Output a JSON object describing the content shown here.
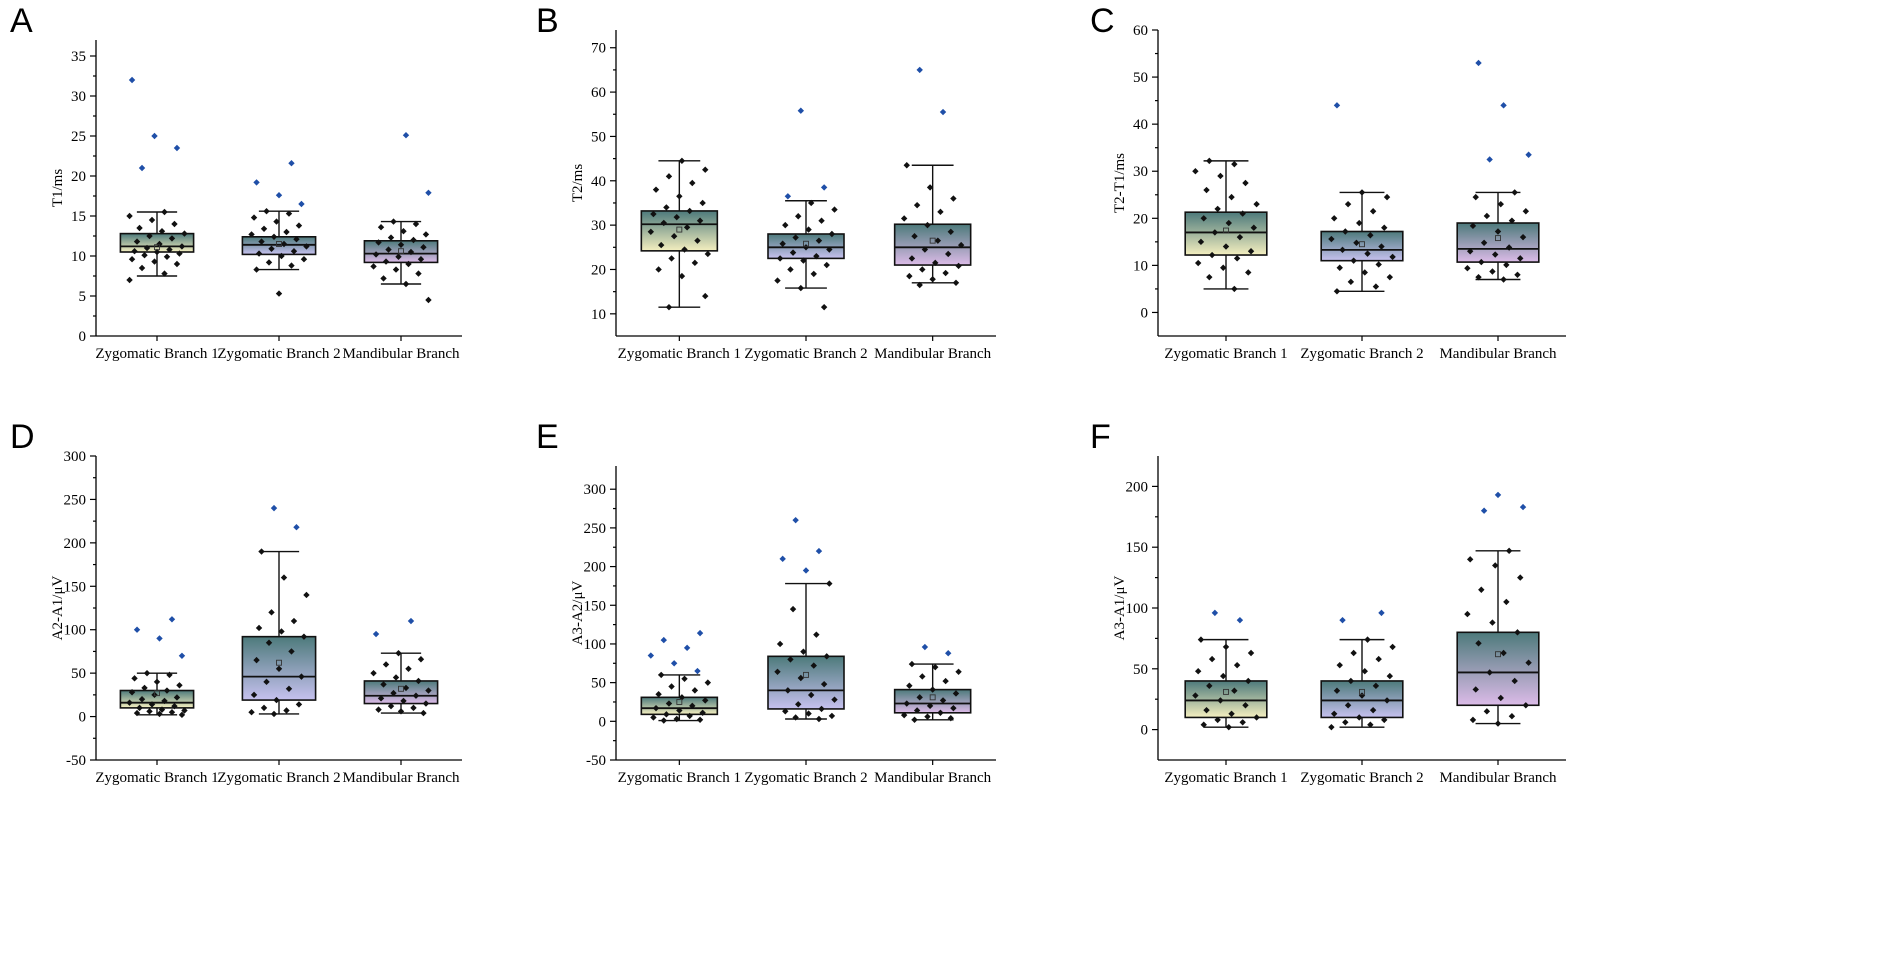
{
  "chart_data": [
    {
      "panel": "A",
      "type": "box",
      "ylabel": "T1/ms",
      "ylim": [
        0,
        37
      ],
      "yticks": [
        0,
        5,
        10,
        15,
        20,
        25,
        30,
        35
      ],
      "categories": [
        "Zygomatic Branch 1",
        "Zygomatic Branch 2",
        "Mandibular Branch"
      ],
      "boxes": [
        {
          "q1": 10.5,
          "median": 11.2,
          "q3": 12.8,
          "whisker_low": 7.5,
          "whisker_high": 15.5,
          "mean": 11.1,
          "points": [
            7.0,
            7.8,
            8.5,
            9.0,
            9.3,
            9.6,
            9.9,
            10.1,
            10.3,
            10.5,
            10.6,
            10.8,
            11.0,
            11.2,
            11.5,
            11.8,
            12.2,
            12.5,
            12.8,
            13.1,
            13.5,
            14.0,
            14.5,
            15.0,
            15.5,
            21.0,
            23.5,
            25.0,
            32.0
          ],
          "outliers": [
            21.0,
            23.5,
            25.0,
            32.0
          ]
        },
        {
          "q1": 10.2,
          "median": 11.4,
          "q3": 12.4,
          "whisker_low": 8.3,
          "whisker_high": 15.6,
          "mean": 11.5,
          "points": [
            5.3,
            8.3,
            8.8,
            9.2,
            9.6,
            10.0,
            10.3,
            10.6,
            10.9,
            11.2,
            11.5,
            11.8,
            12.1,
            12.4,
            12.7,
            13.0,
            13.4,
            13.8,
            14.3,
            14.8,
            15.3,
            15.6,
            16.5,
            17.6,
            19.2,
            21.6
          ],
          "outliers": [
            16.5,
            17.6,
            19.2,
            21.6
          ]
        },
        {
          "q1": 9.2,
          "median": 10.3,
          "q3": 11.9,
          "whisker_low": 6.5,
          "whisker_high": 14.3,
          "mean": 10.6,
          "points": [
            4.5,
            6.5,
            7.2,
            7.8,
            8.3,
            8.7,
            9.0,
            9.3,
            9.6,
            9.9,
            10.2,
            10.5,
            10.8,
            11.1,
            11.4,
            11.7,
            12.0,
            12.3,
            12.7,
            13.1,
            13.6,
            14.0,
            14.3,
            17.9,
            25.1
          ],
          "outliers": [
            17.9,
            25.1
          ]
        }
      ]
    },
    {
      "panel": "B",
      "type": "box",
      "ylabel": "T2/ms",
      "ylim": [
        5,
        74
      ],
      "yticks": [
        10,
        20,
        30,
        40,
        50,
        60,
        70
      ],
      "categories": [
        "Zygomatic Branch 1",
        "Zygomatic Branch 2",
        "Mandibular Branch"
      ],
      "boxes": [
        {
          "q1": 24.2,
          "median": 30.2,
          "q3": 33.2,
          "whisker_low": 11.5,
          "whisker_high": 44.5,
          "mean": 29.0,
          "points": [
            11.5,
            14.0,
            18.5,
            20.0,
            21.5,
            22.5,
            23.5,
            24.5,
            25.5,
            26.5,
            27.5,
            28.5,
            29.5,
            30.5,
            31.0,
            31.8,
            32.5,
            33.2,
            34.0,
            35.0,
            36.5,
            38.0,
            39.5,
            41.0,
            42.5,
            44.5
          ],
          "outliers": []
        },
        {
          "q1": 22.5,
          "median": 25.0,
          "q3": 28.0,
          "whisker_low": 15.8,
          "whisker_high": 35.5,
          "mean": 25.8,
          "points": [
            11.5,
            15.8,
            17.5,
            19.0,
            20.0,
            21.0,
            22.0,
            22.5,
            23.0,
            23.8,
            24.5,
            25.0,
            25.8,
            26.5,
            27.2,
            28.0,
            29.0,
            30.0,
            31.0,
            32.0,
            33.5,
            35.0,
            36.5,
            38.5,
            55.8
          ],
          "outliers": [
            36.5,
            38.5,
            55.8
          ]
        },
        {
          "q1": 21.0,
          "median": 25.0,
          "q3": 30.2,
          "whisker_low": 17.0,
          "whisker_high": 43.5,
          "mean": 26.5,
          "points": [
            16.5,
            17.0,
            17.8,
            18.5,
            19.2,
            20.0,
            20.8,
            21.5,
            22.5,
            23.5,
            24.5,
            25.5,
            26.5,
            27.5,
            28.5,
            30.0,
            31.5,
            33.0,
            34.5,
            36.0,
            38.5,
            43.5,
            55.5,
            65.0
          ],
          "outliers": [
            55.5,
            65.0
          ]
        }
      ]
    },
    {
      "panel": "C",
      "type": "box",
      "ylabel": "T2-T1/ms",
      "ylim": [
        -5,
        60
      ],
      "yticks": [
        0,
        10,
        20,
        30,
        40,
        50,
        60
      ],
      "categories": [
        "Zygomatic Branch 1",
        "Zygomatic Branch 2",
        "Mandibular Branch"
      ],
      "boxes": [
        {
          "q1": 12.2,
          "median": 17.0,
          "q3": 21.3,
          "whisker_low": 5.0,
          "whisker_high": 32.2,
          "mean": 17.4,
          "points": [
            5.0,
            7.5,
            8.5,
            9.5,
            10.5,
            11.5,
            12.2,
            13.0,
            14.0,
            15.0,
            16.0,
            17.0,
            18.0,
            19.0,
            20.0,
            21.0,
            22.0,
            23.0,
            24.5,
            26.0,
            27.5,
            29.0,
            30.0,
            31.5,
            32.2
          ],
          "outliers": []
        },
        {
          "q1": 11.0,
          "median": 13.3,
          "q3": 17.2,
          "whisker_low": 4.5,
          "whisker_high": 25.5,
          "mean": 14.5,
          "points": [
            4.5,
            5.5,
            6.5,
            7.5,
            8.5,
            9.5,
            10.2,
            11.0,
            11.8,
            12.5,
            13.3,
            14.0,
            14.8,
            15.6,
            16.4,
            17.2,
            18.0,
            19.0,
            20.0,
            21.5,
            23.0,
            24.5,
            25.5,
            44.0
          ],
          "outliers": [
            44.0
          ]
        },
        {
          "q1": 10.7,
          "median": 13.5,
          "q3": 19.0,
          "whisker_low": 7.0,
          "whisker_high": 25.5,
          "mean": 15.8,
          "points": [
            7.0,
            7.5,
            8.0,
            8.7,
            9.4,
            10.1,
            10.7,
            11.5,
            12.3,
            13.0,
            13.8,
            14.8,
            16.0,
            17.2,
            18.4,
            19.5,
            20.5,
            21.5,
            23.0,
            24.5,
            25.5,
            32.5,
            33.5,
            44.0,
            53.0
          ],
          "outliers": [
            32.5,
            33.5,
            44.0,
            53.0
          ]
        }
      ]
    },
    {
      "panel": "D",
      "type": "box",
      "ylabel": "A2-A1/μV",
      "ylim": [
        -50,
        300
      ],
      "yticks": [
        -50,
        0,
        50,
        100,
        150,
        200,
        250,
        300
      ],
      "categories": [
        "Zygomatic Branch 1",
        "Zygomatic Branch 2",
        "Mandibular Branch"
      ],
      "boxes": [
        {
          "q1": 10,
          "median": 16,
          "q3": 30,
          "whisker_low": 2,
          "whisker_high": 50,
          "mean": 27,
          "points": [
            2,
            3,
            4,
            5,
            6,
            7,
            8,
            10,
            12,
            14,
            16,
            18,
            20,
            22,
            25,
            28,
            30,
            33,
            36,
            40,
            44,
            48,
            50,
            70,
            90,
            100,
            112
          ],
          "outliers": [
            70,
            90,
            100,
            112
          ]
        },
        {
          "q1": 19,
          "median": 46,
          "q3": 92,
          "whisker_low": 3,
          "whisker_high": 190,
          "mean": 62,
          "points": [
            3,
            5,
            7,
            10,
            14,
            19,
            25,
            32,
            40,
            46,
            55,
            65,
            75,
            85,
            92,
            98,
            102,
            110,
            120,
            140,
            160,
            190,
            218,
            240
          ],
          "outliers": [
            218,
            240
          ]
        },
        {
          "q1": 15,
          "median": 24,
          "q3": 41,
          "whisker_low": 4,
          "whisker_high": 73,
          "mean": 32,
          "points": [
            4,
            6,
            8,
            10,
            12,
            15,
            18,
            21,
            24,
            27,
            30,
            33,
            37,
            41,
            45,
            50,
            55,
            60,
            66,
            73,
            95,
            110
          ],
          "outliers": [
            95,
            110
          ]
        }
      ]
    },
    {
      "panel": "E",
      "type": "box",
      "ylabel": "A3-A2/μV",
      "ylim": [
        -50,
        330
      ],
      "yticks": [
        -50,
        0,
        50,
        100,
        150,
        200,
        250,
        300
      ],
      "categories": [
        "Zygomatic Branch 1",
        "Zygomatic Branch 2",
        "Mandibular Branch"
      ],
      "boxes": [
        {
          "q1": 9,
          "median": 17,
          "q3": 31,
          "whisker_low": 1,
          "whisker_high": 60,
          "mean": 25,
          "points": [
            1,
            2,
            3,
            5,
            7,
            9,
            11,
            14,
            17,
            20,
            23,
            27,
            31,
            35,
            40,
            45,
            50,
            55,
            60,
            65,
            75,
            85,
            95,
            105,
            114
          ],
          "outliers": [
            65,
            75,
            85,
            95,
            105,
            114
          ]
        },
        {
          "q1": 16,
          "median": 40,
          "q3": 84,
          "whisker_low": 3,
          "whisker_high": 178,
          "mean": 60,
          "points": [
            3,
            5,
            7,
            10,
            13,
            16,
            22,
            28,
            34,
            40,
            48,
            56,
            64,
            72,
            80,
            84,
            90,
            100,
            112,
            145,
            178,
            195,
            210,
            220,
            260
          ],
          "outliers": [
            195,
            210,
            220,
            260
          ]
        },
        {
          "q1": 11,
          "median": 23,
          "q3": 41,
          "whisker_low": 2,
          "whisker_high": 74,
          "mean": 31,
          "points": [
            2,
            4,
            6,
            8,
            11,
            14,
            17,
            20,
            23,
            27,
            31,
            36,
            41,
            46,
            52,
            58,
            64,
            70,
            74,
            88,
            96
          ],
          "outliers": [
            88,
            96
          ]
        }
      ]
    },
    {
      "panel": "F",
      "type": "box",
      "ylabel": "A3-A1/μV",
      "ylim": [
        -25,
        225
      ],
      "yticks": [
        0,
        50,
        100,
        150,
        200
      ],
      "categories": [
        "Zygomatic Branch 1",
        "Zygomatic Branch 2",
        "Mandibular Branch"
      ],
      "boxes": [
        {
          "q1": 10,
          "median": 24,
          "q3": 40,
          "whisker_low": 2,
          "whisker_high": 74,
          "mean": 31,
          "points": [
            2,
            4,
            6,
            8,
            10,
            13,
            16,
            20,
            24,
            28,
            32,
            36,
            40,
            44,
            48,
            53,
            58,
            63,
            68,
            74,
            90,
            96
          ],
          "outliers": [
            90,
            96
          ]
        },
        {
          "q1": 10,
          "median": 24,
          "q3": 40,
          "whisker_low": 2,
          "whisker_high": 74,
          "mean": 31,
          "points": [
            2,
            4,
            6,
            8,
            10,
            13,
            16,
            20,
            24,
            28,
            32,
            36,
            40,
            44,
            48,
            53,
            58,
            63,
            68,
            74,
            90,
            96
          ],
          "outliers": [
            90,
            96
          ]
        },
        {
          "q1": 20,
          "median": 47,
          "q3": 80,
          "whisker_low": 5,
          "whisker_high": 147,
          "mean": 62,
          "points": [
            5,
            8,
            11,
            15,
            20,
            26,
            33,
            40,
            47,
            55,
            63,
            71,
            80,
            88,
            95,
            105,
            115,
            125,
            135,
            140,
            147,
            180,
            183,
            193
          ],
          "outliers": [
            180,
            183,
            193
          ]
        }
      ]
    }
  ],
  "colors": {
    "box_top": "#4d7a7b",
    "box_z1_bottom": "#f4efbf",
    "box_z2_bottom": "#c6c1ef",
    "box_mand_bottom": "#dcbbe8",
    "point": "#111111",
    "outlier": "#1f4fa8"
  }
}
